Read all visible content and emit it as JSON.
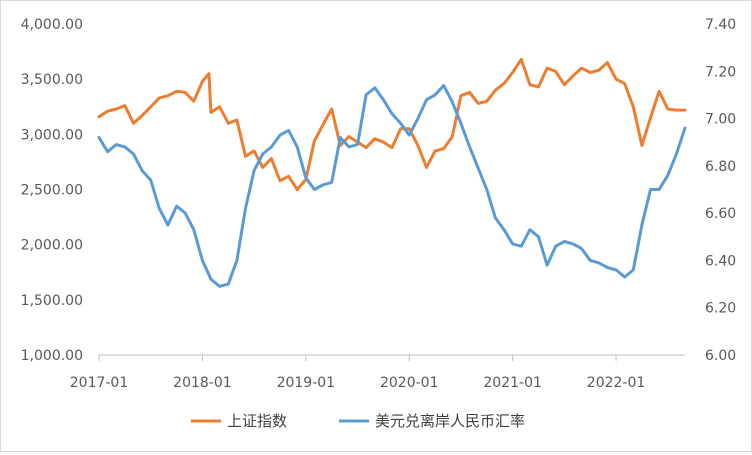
{
  "chart_data": {
    "type": "line",
    "title": "",
    "xlabel": "",
    "ylabel": "",
    "x_ticks": [
      "2017-01",
      "2018-01",
      "2019-01",
      "2020-01",
      "2021-01",
      "2022-01"
    ],
    "y_left": {
      "ylim": [
        1000,
        4000
      ],
      "ticks": [
        "1,000.00",
        "1,500.00",
        "2,000.00",
        "2,500.00",
        "3,000.00",
        "3,500.00",
        "4,000.00"
      ]
    },
    "y_right": {
      "ylim": [
        6.0,
        7.4
      ],
      "ticks": [
        "6.00",
        "6.20",
        "6.40",
        "6.60",
        "6.80",
        "7.00",
        "7.20",
        "7.40"
      ]
    },
    "x_range": [
      "2017-01-01",
      "2022-09-01"
    ],
    "grid": false,
    "legend_position": "bottom",
    "series": [
      {
        "name": "上证指数",
        "axis": "left",
        "color": "#ED7D31",
        "points": [
          [
            "2017-01",
            3160
          ],
          [
            "2017-02",
            3210
          ],
          [
            "2017-03",
            3230
          ],
          [
            "2017-04",
            3260
          ],
          [
            "2017-05",
            3100
          ],
          [
            "2017-06",
            3170
          ],
          [
            "2017-07",
            3250
          ],
          [
            "2017-08",
            3330
          ],
          [
            "2017-09",
            3350
          ],
          [
            "2017-10",
            3390
          ],
          [
            "2017-11",
            3380
          ],
          [
            "2017-12",
            3300
          ],
          [
            "2018-01",
            3480
          ],
          [
            "2018-01-24",
            3550
          ],
          [
            "2018-02",
            3200
          ],
          [
            "2018-03",
            3250
          ],
          [
            "2018-04",
            3100
          ],
          [
            "2018-05",
            3130
          ],
          [
            "2018-06",
            2800
          ],
          [
            "2018-07",
            2850
          ],
          [
            "2018-08",
            2700
          ],
          [
            "2018-09",
            2780
          ],
          [
            "2018-10",
            2580
          ],
          [
            "2018-11",
            2620
          ],
          [
            "2018-12",
            2500
          ],
          [
            "2019-01",
            2590
          ],
          [
            "2019-02",
            2940
          ],
          [
            "2019-03",
            3090
          ],
          [
            "2019-04",
            3230
          ],
          [
            "2019-05",
            2900
          ],
          [
            "2019-06",
            2980
          ],
          [
            "2019-07",
            2930
          ],
          [
            "2019-08",
            2880
          ],
          [
            "2019-09",
            2960
          ],
          [
            "2019-10",
            2930
          ],
          [
            "2019-11",
            2880
          ],
          [
            "2019-12",
            3050
          ],
          [
            "2020-01",
            3050
          ],
          [
            "2020-02",
            2900
          ],
          [
            "2020-03",
            2700
          ],
          [
            "2020-04",
            2850
          ],
          [
            "2020-05",
            2870
          ],
          [
            "2020-06",
            2980
          ],
          [
            "2020-07",
            3350
          ],
          [
            "2020-08",
            3380
          ],
          [
            "2020-09",
            3280
          ],
          [
            "2020-10",
            3300
          ],
          [
            "2020-11",
            3400
          ],
          [
            "2020-12",
            3460
          ],
          [
            "2021-01",
            3560
          ],
          [
            "2021-02",
            3680
          ],
          [
            "2021-03",
            3450
          ],
          [
            "2021-04",
            3430
          ],
          [
            "2021-05",
            3600
          ],
          [
            "2021-06",
            3570
          ],
          [
            "2021-07",
            3450
          ],
          [
            "2021-08",
            3530
          ],
          [
            "2021-09",
            3600
          ],
          [
            "2021-10",
            3560
          ],
          [
            "2021-11",
            3580
          ],
          [
            "2021-12",
            3650
          ],
          [
            "2022-01",
            3500
          ],
          [
            "2022-02",
            3460
          ],
          [
            "2022-03",
            3250
          ],
          [
            "2022-04",
            2900
          ],
          [
            "2022-05",
            3150
          ],
          [
            "2022-06",
            3390
          ],
          [
            "2022-07",
            3230
          ],
          [
            "2022-08",
            3220
          ],
          [
            "2022-09",
            3220
          ]
        ]
      },
      {
        "name": "美元兑离岸人民币汇率",
        "axis": "right",
        "color": "#5B9BD5",
        "points": [
          [
            "2017-01",
            6.92
          ],
          [
            "2017-02",
            6.86
          ],
          [
            "2017-03",
            6.89
          ],
          [
            "2017-04",
            6.88
          ],
          [
            "2017-05",
            6.85
          ],
          [
            "2017-06",
            6.78
          ],
          [
            "2017-07",
            6.74
          ],
          [
            "2017-08",
            6.62
          ],
          [
            "2017-09",
            6.55
          ],
          [
            "2017-10",
            6.63
          ],
          [
            "2017-11",
            6.6
          ],
          [
            "2017-12",
            6.53
          ],
          [
            "2018-01",
            6.4
          ],
          [
            "2018-02",
            6.32
          ],
          [
            "2018-03",
            6.29
          ],
          [
            "2018-04",
            6.3
          ],
          [
            "2018-05",
            6.4
          ],
          [
            "2018-06",
            6.62
          ],
          [
            "2018-07",
            6.78
          ],
          [
            "2018-08",
            6.85
          ],
          [
            "2018-09",
            6.88
          ],
          [
            "2018-10",
            6.93
          ],
          [
            "2018-11",
            6.95
          ],
          [
            "2018-12",
            6.88
          ],
          [
            "2019-01",
            6.75
          ],
          [
            "2019-02",
            6.7
          ],
          [
            "2019-03",
            6.72
          ],
          [
            "2019-04",
            6.73
          ],
          [
            "2019-05",
            6.92
          ],
          [
            "2019-06",
            6.88
          ],
          [
            "2019-07",
            6.89
          ],
          [
            "2019-08",
            7.1
          ],
          [
            "2019-09",
            7.13
          ],
          [
            "2019-10",
            7.08
          ],
          [
            "2019-11",
            7.02
          ],
          [
            "2019-12",
            6.98
          ],
          [
            "2020-01",
            6.93
          ],
          [
            "2020-02",
            7.0
          ],
          [
            "2020-03",
            7.08
          ],
          [
            "2020-04",
            7.1
          ],
          [
            "2020-05",
            7.14
          ],
          [
            "2020-06",
            7.07
          ],
          [
            "2020-07",
            6.98
          ],
          [
            "2020-08",
            6.88
          ],
          [
            "2020-09",
            6.79
          ],
          [
            "2020-10",
            6.7
          ],
          [
            "2020-11",
            6.58
          ],
          [
            "2020-12",
            6.53
          ],
          [
            "2021-01",
            6.47
          ],
          [
            "2021-02",
            6.46
          ],
          [
            "2021-03",
            6.53
          ],
          [
            "2021-04",
            6.5
          ],
          [
            "2021-05",
            6.38
          ],
          [
            "2021-06",
            6.46
          ],
          [
            "2021-07",
            6.48
          ],
          [
            "2021-08",
            6.47
          ],
          [
            "2021-09",
            6.45
          ],
          [
            "2021-10",
            6.4
          ],
          [
            "2021-11",
            6.39
          ],
          [
            "2021-12",
            6.37
          ],
          [
            "2022-01",
            6.36
          ],
          [
            "2022-02",
            6.33
          ],
          [
            "2022-03",
            6.36
          ],
          [
            "2022-04",
            6.55
          ],
          [
            "2022-05",
            6.7
          ],
          [
            "2022-06",
            6.7
          ],
          [
            "2022-07",
            6.76
          ],
          [
            "2022-08",
            6.85
          ],
          [
            "2022-09",
            6.96
          ]
        ]
      }
    ]
  }
}
